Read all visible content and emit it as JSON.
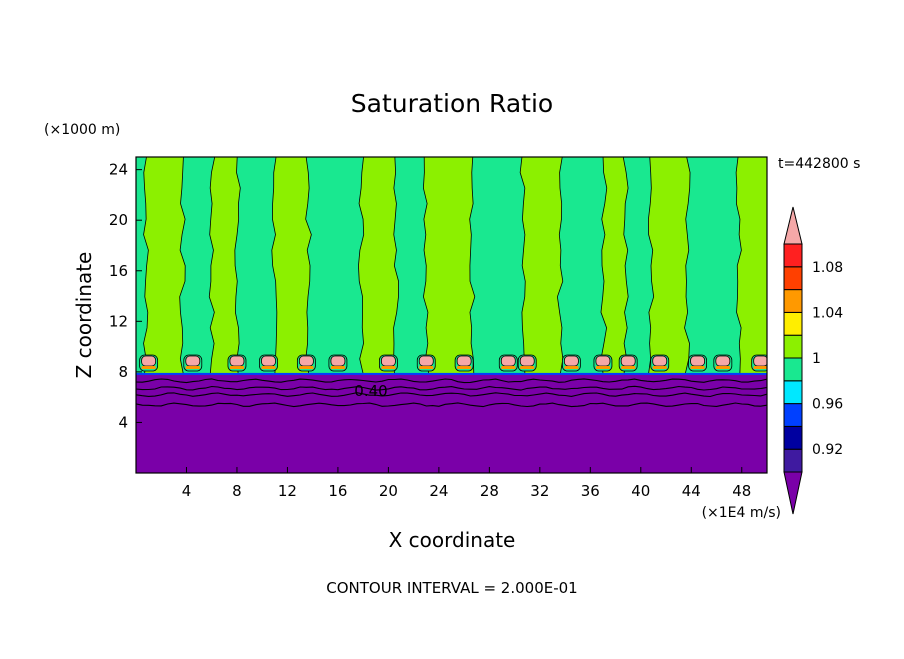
{
  "chart_data": {
    "type": "heatmap",
    "title": "Saturation Ratio",
    "xlabel": "X coordinate",
    "ylabel": "Z coordinate",
    "x_unit": "(×1E4 m/s)",
    "y_unit": "(×1000 m)",
    "time_label": "t=442800 s",
    "footer": "CONTOUR INTERVAL = 2.000E-01",
    "contour_label": "0.40",
    "xlim": [
      0,
      50
    ],
    "ylim": [
      0,
      25
    ],
    "x_ticks": [
      4,
      8,
      12,
      16,
      20,
      24,
      28,
      32,
      36,
      40,
      44,
      48
    ],
    "y_ticks": [
      4,
      8,
      12,
      16,
      20,
      24
    ],
    "colorbar": {
      "levels": [
        {
          "min": null,
          "max": 0.9,
          "color": "#7a00a8"
        },
        {
          "min": 0.9,
          "max": 0.92,
          "color": "#3f1aa0"
        },
        {
          "min": 0.92,
          "max": 0.94,
          "color": "#0000a0"
        },
        {
          "min": 0.94,
          "max": 0.96,
          "color": "#0040ff"
        },
        {
          "min": 0.96,
          "max": 0.98,
          "color": "#00e8ff"
        },
        {
          "min": 0.98,
          "max": 1.0,
          "color": "#19e890"
        },
        {
          "min": 1.0,
          "max": 1.02,
          "color": "#8cf000"
        },
        {
          "min": 1.02,
          "max": 1.04,
          "color": "#ffee00"
        },
        {
          "min": 1.04,
          "max": 1.06,
          "color": "#ff9900"
        },
        {
          "min": 1.06,
          "max": 1.08,
          "color": "#ff4000"
        },
        {
          "min": 1.08,
          "max": 1.1,
          "color": "#ff2020"
        },
        {
          "min": 1.1,
          "max": null,
          "color": "#f5a8a8"
        }
      ],
      "labels": [
        "0.92",
        "0.96",
        "1",
        "1.04",
        "1.08"
      ]
    },
    "regions": {
      "lower_layer": {
        "z_top": 7.8,
        "value": "below 0.9"
      },
      "upper_layer": {
        "z_bottom": 7.8,
        "z_top": 25,
        "values": "0.98 to 1.02 alternating vertical columns"
      },
      "cloud_tops": {
        "z": 8.7,
        "x_centers": [
          1,
          4.5,
          8,
          10.5,
          13.5,
          16,
          20,
          23,
          26,
          29.5,
          31,
          34.5,
          37,
          39,
          41.5,
          44.5,
          46.5,
          49.5
        ]
      }
    }
  }
}
